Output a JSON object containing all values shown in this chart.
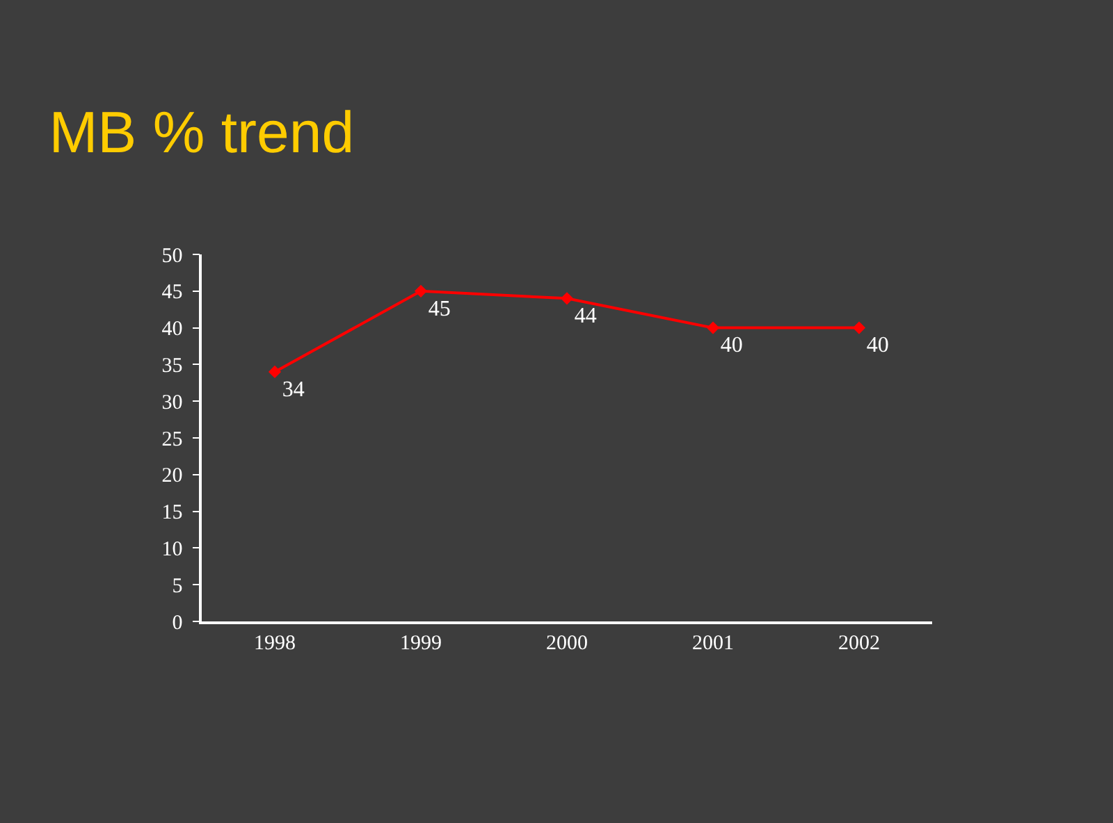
{
  "chart_data": {
    "type": "line",
    "title": "MB % trend",
    "categories": [
      "1998",
      "1999",
      "2000",
      "2001",
      "2002"
    ],
    "series": [
      {
        "color": "#ff0000",
        "values": [
          34,
          45,
          44,
          40,
          40
        ]
      }
    ],
    "ylim": [
      0,
      50
    ],
    "yticks": [
      0,
      5,
      10,
      15,
      20,
      25,
      30,
      35,
      40,
      45,
      50
    ],
    "data_labels": true,
    "marker": "diamond",
    "line_style": "solid",
    "grid": false,
    "legend": false
  }
}
